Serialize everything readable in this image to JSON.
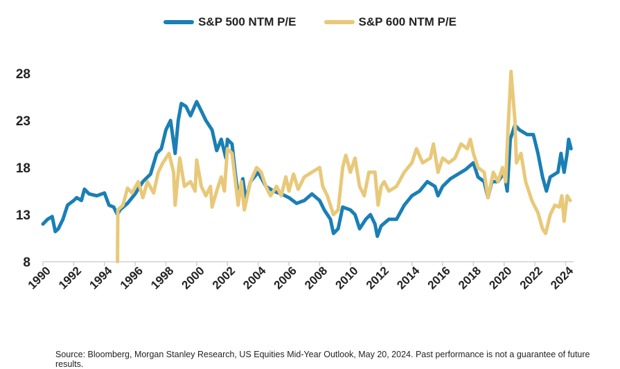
{
  "chart_data": {
    "type": "line",
    "title": "",
    "xlabel": "",
    "ylabel": "",
    "xlim": [
      1990,
      2024.4
    ],
    "ylim": [
      8,
      28
    ],
    "yticks": [
      8,
      13,
      18,
      23,
      28
    ],
    "xticks": [
      1990,
      1992,
      1994,
      1996,
      1998,
      2000,
      2002,
      2004,
      2006,
      2008,
      2010,
      2012,
      2014,
      2016,
      2018,
      2020,
      2022,
      2024
    ],
    "grid": false,
    "legend": "top-center",
    "series": [
      {
        "name": "S&P 500 NTM P/E",
        "color": "#1a7fb5",
        "x": [
          1990,
          1990.3,
          1990.6,
          1990.8,
          1991,
          1991.3,
          1991.6,
          1992,
          1992.2,
          1992.5,
          1992.7,
          1993,
          1993.5,
          1994,
          1994.3,
          1994.6,
          1994.85,
          1995,
          1995.5,
          1996,
          1996.5,
          1997,
          1997.4,
          1997.7,
          1998,
          1998.3,
          1998.6,
          1998.8,
          1999,
          1999.3,
          1999.6,
          2000,
          2000.3,
          2000.6,
          2001,
          2001.3,
          2001.6,
          2001.9,
          2002,
          2002.3,
          2002.5,
          2002.7,
          2003,
          2003.2,
          2003.5,
          2004,
          2004.5,
          2005,
          2005.5,
          2006,
          2006.5,
          2007,
          2007.5,
          2008,
          2008.3,
          2008.7,
          2008.9,
          2009.2,
          2009.5,
          2010,
          2010.3,
          2010.6,
          2011,
          2011.3,
          2011.6,
          2011.75,
          2012,
          2012.5,
          2013,
          2013.5,
          2014,
          2014.5,
          2015,
          2015.5,
          2015.7,
          2016,
          2016.5,
          2017,
          2017.5,
          2018,
          2018.3,
          2018.7,
          2018.95,
          2019.2,
          2019.6,
          2020,
          2020.2,
          2020.4,
          2020.7,
          2021,
          2021.5,
          2021.9,
          2022.2,
          2022.5,
          2022.75,
          2023,
          2023.5,
          2023.7,
          2023.9,
          2024.1,
          2024.2,
          2024.35
        ],
        "values": [
          12,
          12.5,
          12.8,
          11.2,
          11.5,
          12.5,
          14,
          14.5,
          14.8,
          14.5,
          15.7,
          15.2,
          15,
          15.3,
          14,
          13.8,
          13,
          13.5,
          14.2,
          15.2,
          16.5,
          17.3,
          19.5,
          20,
          22,
          23,
          19.5,
          23,
          24.8,
          24.5,
          23.5,
          25,
          24,
          23,
          22,
          19.8,
          21,
          19,
          21,
          20.5,
          17.5,
          15,
          16.8,
          14.5,
          16.5,
          17.5,
          16,
          15.5,
          15.2,
          14.8,
          14.2,
          14.5,
          15.2,
          14.5,
          13.5,
          12.5,
          11,
          11.5,
          13.8,
          13.5,
          13,
          11.5,
          12.5,
          13,
          12,
          10.7,
          11.8,
          12.5,
          12.5,
          14,
          15,
          15.5,
          16.5,
          16,
          15,
          16,
          16.8,
          17.3,
          17.8,
          18.5,
          17,
          16.5,
          14.8,
          16.5,
          16.5,
          17.5,
          15.5,
          21,
          22.5,
          22,
          21.5,
          21.5,
          19.5,
          17,
          15.5,
          17,
          17.5,
          19.5,
          17.5,
          19.5,
          21,
          20
        ]
      },
      {
        "name": "S&P 600 NTM P/E",
        "color": "#e8c97a",
        "x": [
          1994.85,
          1994.87,
          1995.2,
          1995.5,
          1995.8,
          1996.2,
          1996.5,
          1996.8,
          1997.2,
          1997.5,
          1997.8,
          1998.2,
          1998.5,
          1998.6,
          1998.9,
          1999.2,
          1999.6,
          1999.9,
          2000,
          2000.3,
          2000.6,
          2000.9,
          2001,
          2001.3,
          2001.6,
          2001.8,
          2002,
          2002.3,
          2002.7,
          2002.9,
          2003.1,
          2003.5,
          2003.9,
          2004.2,
          2004.5,
          2004.8,
          2005.2,
          2005.5,
          2005.8,
          2006,
          2006.3,
          2006.6,
          2007,
          2007.5,
          2008,
          2008.2,
          2008.5,
          2008.9,
          2009.2,
          2009.5,
          2009.7,
          2010,
          2010.3,
          2010.6,
          2010.9,
          2011.2,
          2011.6,
          2011.8,
          2012,
          2012.2,
          2012.5,
          2013,
          2013.5,
          2014,
          2014.3,
          2014.7,
          2015.2,
          2015.4,
          2015.7,
          2016,
          2016.4,
          2016.8,
          2017.2,
          2017.6,
          2017.8,
          2018,
          2018.3,
          2018.7,
          2018.95,
          2019.3,
          2019.6,
          2019.9,
          2020.1,
          2020.25,
          2020.45,
          2020.7,
          2020.8,
          2021.1,
          2021.4,
          2021.8,
          2022.2,
          2022.5,
          2022.7,
          2023,
          2023.3,
          2023.6,
          2023.75,
          2023.9,
          2024.1,
          2024.3
        ],
        "values": [
          8,
          13.5,
          14,
          15.8,
          15.3,
          16.5,
          14.8,
          16.5,
          15.3,
          17.5,
          18.5,
          19.5,
          17.5,
          14,
          19,
          16,
          16.5,
          15.5,
          18.8,
          16,
          15,
          16,
          13.8,
          15.5,
          17,
          15.5,
          20,
          19.5,
          14,
          16.5,
          13.5,
          16.5,
          18,
          17.5,
          16,
          15,
          16,
          15,
          17,
          15.5,
          17.3,
          15.7,
          17,
          17.5,
          18,
          16,
          15,
          13,
          13.5,
          18,
          19.3,
          17.5,
          19,
          16,
          15,
          17.5,
          17.5,
          14,
          16,
          16.5,
          15.5,
          16,
          17.5,
          18.5,
          20,
          18.5,
          19,
          20.5,
          17.5,
          19,
          18.5,
          19,
          20.5,
          20,
          21,
          19.5,
          18,
          17.5,
          14.8,
          17.5,
          16.5,
          18,
          16.5,
          22,
          28.2,
          23,
          18.5,
          19.5,
          16.5,
          14.5,
          13.2,
          11.5,
          11,
          13,
          14,
          13.8,
          15,
          12.3,
          15,
          14.5
        ]
      }
    ]
  },
  "source": "Source: Bloomberg, Morgan Stanley Research, US Equities Mid-Year Outlook, May 20, 2024. Past performance is not a guarantee of future results."
}
